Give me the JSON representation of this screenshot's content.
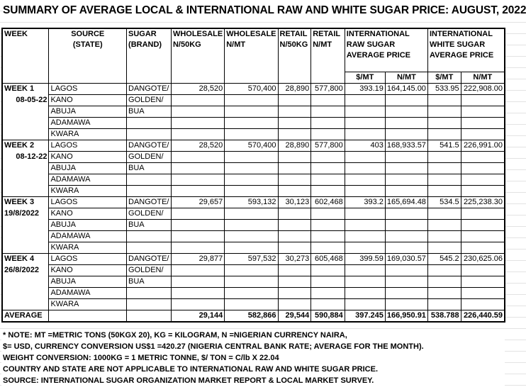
{
  "title": "SUMMARY OF AVERAGE LOCAL & INTERNATIONAL RAW AND WHITE SUGAR PRICE: AUGUST, 2022",
  "headers": {
    "week": "WEEK",
    "source": [
      "SOURCE",
      "(STATE)"
    ],
    "sugar": [
      "SUGAR",
      "(BRAND)"
    ],
    "wholesale_50kg": [
      "WHOLESALE",
      "N/50KG"
    ],
    "wholesale_mt": [
      "WHOLESALE",
      "N/MT"
    ],
    "retail_50kg": [
      "RETAIL",
      "N/50KG"
    ],
    "retail_mt": [
      "RETAIL",
      "N/MT"
    ],
    "intl_raw": [
      "INTERNATIONAL",
      "RAW SUGAR",
      "AVERAGE PRICE"
    ],
    "intl_white": [
      "INTERNATIONAL",
      "WHITE SUGAR",
      "AVERAGE PRICE"
    ],
    "sub": [
      "$/MT",
      "N/MT",
      "$/MT",
      "N/MT"
    ]
  },
  "states": [
    "LAGOS",
    "KANO",
    "ABUJA",
    "ADAMAWA",
    "KWARA"
  ],
  "brands": [
    "DANGOTE/",
    "GOLDEN/",
    "BUA"
  ],
  "weeks": [
    {
      "label": "WEEK 1",
      "date": "08-05-22",
      "date_align": "right",
      "values": [
        "28,520",
        "570,400",
        "28,890",
        "577,800",
        "393.19",
        "164,145.00",
        "533.95",
        "222,908.00"
      ]
    },
    {
      "label": "WEEK 2",
      "date": "08-12-22",
      "date_align": "right",
      "values": [
        "28,520",
        "570,400",
        "28,890",
        "577,800",
        "403",
        "168,933.57",
        "541.5",
        "226,991.00"
      ]
    },
    {
      "label": "WEEK 3",
      "date": "19/8/2022",
      "date_align": "left",
      "values": [
        "29,657",
        "593,132",
        "30,123",
        "602,468",
        "393.2",
        "165,694.48",
        "534.5",
        "225,238.30"
      ]
    },
    {
      "label": "WEEK 4",
      "date": "26/8/2022",
      "date_align": "left",
      "values": [
        "29,877",
        "597,532",
        "30,273",
        "605,468",
        "399.59",
        "169,030.57",
        "545.2",
        "230,625.06"
      ]
    }
  ],
  "average": {
    "label": "AVERAGE",
    "values": [
      "29,144",
      "582,866",
      "29,544",
      "590,884",
      "397.245",
      "166,950.91",
      "538.788",
      "226,440.59"
    ]
  },
  "notes": [
    "* NOTE: MT =METRIC TONS (50KGX 20), KG = KILOGRAM, N =NIGERIAN CURRENCY NAIRA,",
    " $= USD, CURRENCY CONVERSION US$1 =420.27 (NIGERIA CENTRAL BANK RATE; AVERAGE FOR THE MONTH).",
    "WEIGHT CONVERSION: 1000KG = 1 METRIC TONNE, $/ TON = C/lb X 22.04",
    "COUNTRY AND STATE ARE NOT APPLICABLE TO INTERNATIONAL RAW AND WHITE SUGAR PRICE.",
    "SOURCE: INTERNATIONAL SUGAR ORGANIZATION MARKET REPORT & LOCAL MARKET SURVEY."
  ]
}
